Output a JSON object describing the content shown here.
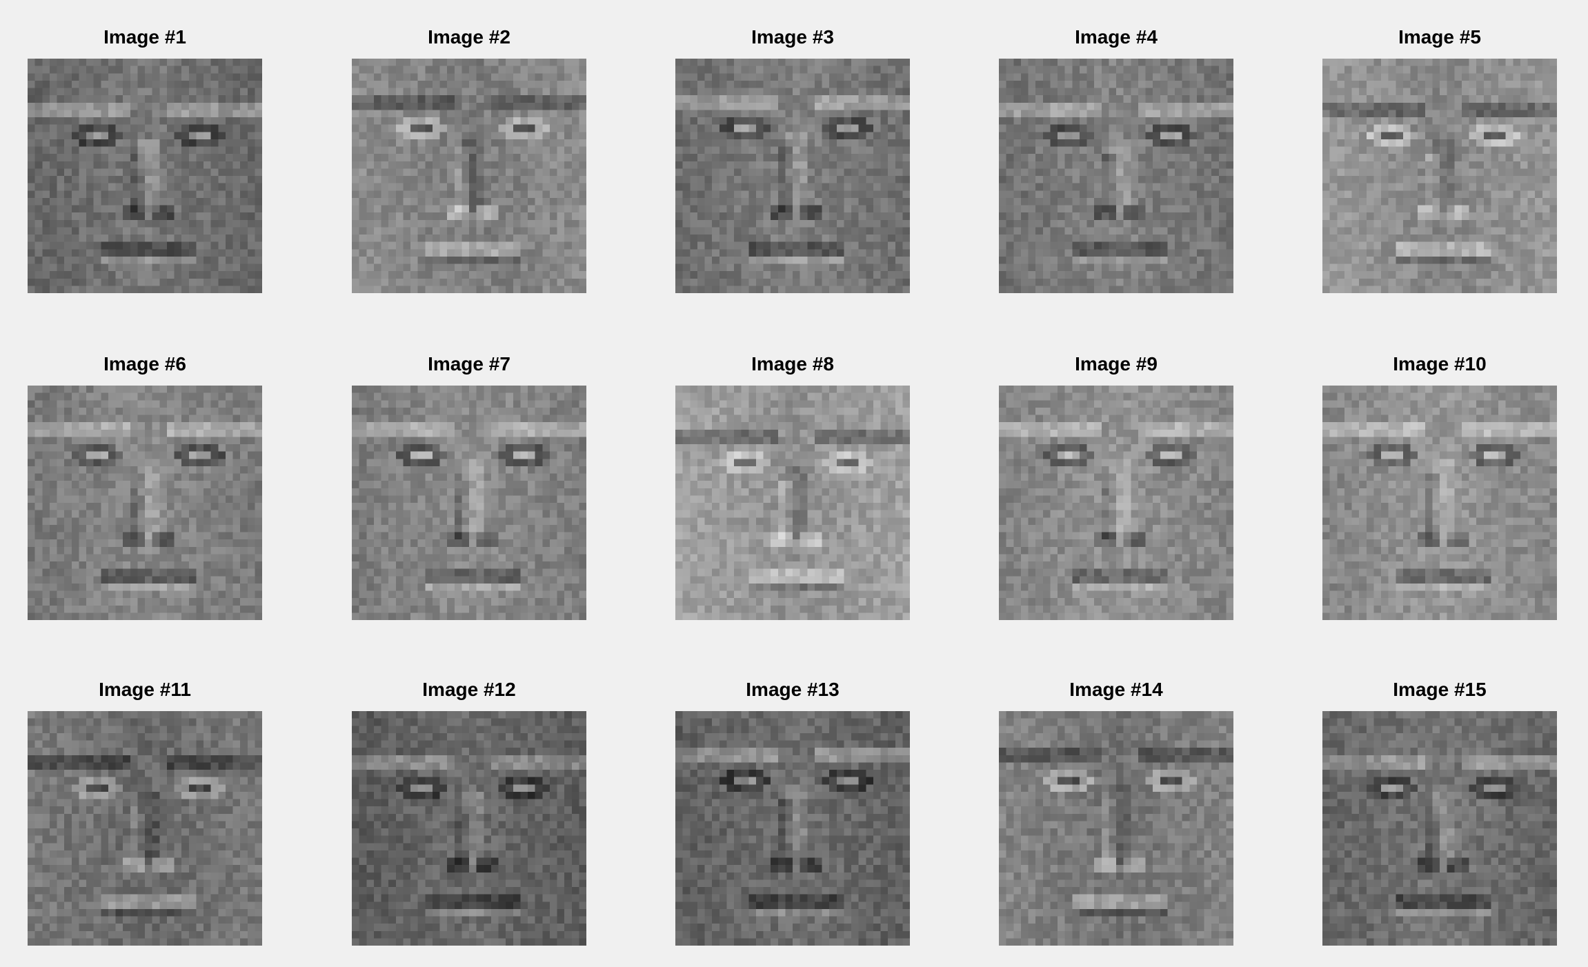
{
  "figure": {
    "background": "#f0f0f0",
    "rows": 3,
    "cols": 5,
    "image_type": "grayscale-face",
    "image_resolution": [
      32,
      32
    ],
    "panels": [
      {
        "title": "Image #1"
      },
      {
        "title": "Image #2"
      },
      {
        "title": "Image #3"
      },
      {
        "title": "Image #4"
      },
      {
        "title": "Image #5"
      },
      {
        "title": "Image #6"
      },
      {
        "title": "Image #7"
      },
      {
        "title": "Image #8"
      },
      {
        "title": "Image #9"
      },
      {
        "title": "Image #10"
      },
      {
        "title": "Image #11"
      },
      {
        "title": "Image #12"
      },
      {
        "title": "Image #13"
      },
      {
        "title": "Image #14"
      },
      {
        "title": "Image #15"
      }
    ]
  }
}
